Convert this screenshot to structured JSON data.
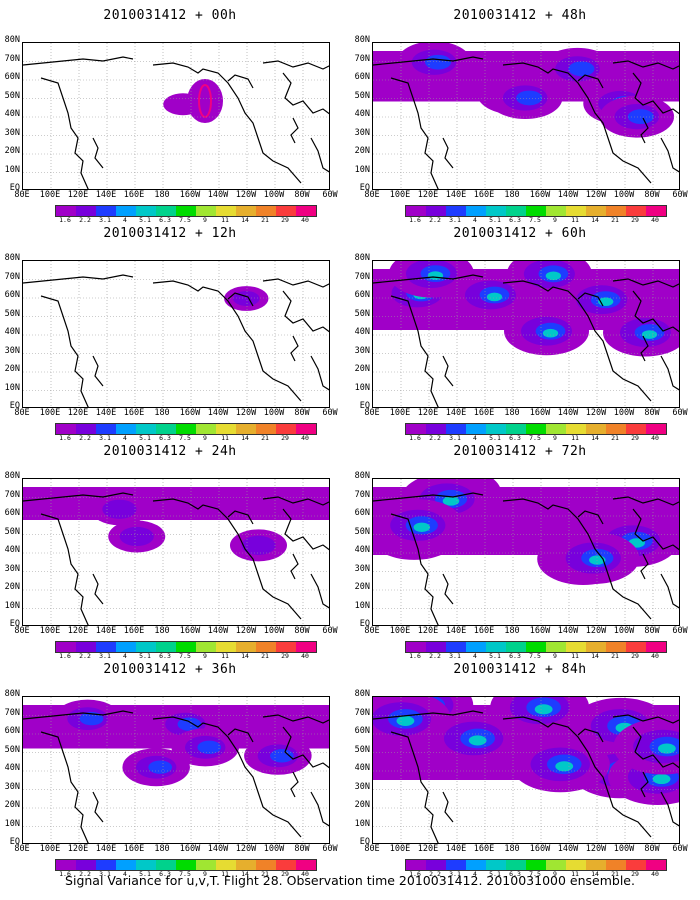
{
  "caption": "Signal Variance for u,v,T. Flight 28. Observation time 2010031412. 2010031000 ensemble.",
  "colors": {
    "palette": [
      "#a000c8",
      "#7800dc",
      "#1e3cff",
      "#00a0ff",
      "#00c8c8",
      "#00d28c",
      "#00dc00",
      "#a0e632",
      "#e6dc32",
      "#e6af2d",
      "#f08228",
      "#fa3c3c",
      "#f00082"
    ],
    "land_outline": "#000000",
    "grid": "#999999"
  },
  "colorbar": {
    "labels": [
      "1.6",
      "2.2",
      "3.1",
      "4",
      "5.1",
      "6.3",
      "7.5",
      "9",
      "11",
      "14",
      "21",
      "29",
      "40"
    ]
  },
  "lat_labels": [
    "80N",
    "70N",
    "60N",
    "50N",
    "40N",
    "30N",
    "20N",
    "10N",
    "EQ"
  ],
  "lon_labels": [
    "80E",
    "100E",
    "120E",
    "140E",
    "160E",
    "180",
    "160W",
    "140W",
    "120W",
    "100W",
    "80W",
    "60W"
  ],
  "panels": [
    {
      "id": "00h",
      "title": "2010031412 + 00h",
      "coverage": 0.05
    },
    {
      "id": "48h",
      "title": "2010031412 + 48h",
      "coverage": 0.55
    },
    {
      "id": "12h",
      "title": "2010031412 + 12h",
      "coverage": 0.12
    },
    {
      "id": "60h",
      "title": "2010031412 + 60h",
      "coverage": 0.7
    },
    {
      "id": "24h",
      "title": "2010031412 + 24h",
      "coverage": 0.3
    },
    {
      "id": "72h",
      "title": "2010031412 + 72h",
      "coverage": 0.8
    },
    {
      "id": "36h",
      "title": "2010031412 + 36h",
      "coverage": 0.45
    },
    {
      "id": "84h",
      "title": "2010031412 + 84h",
      "coverage": 0.9
    }
  ]
}
